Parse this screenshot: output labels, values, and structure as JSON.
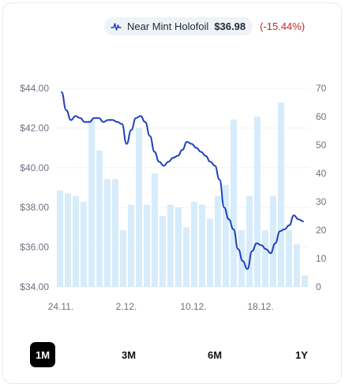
{
  "legend": {
    "series_label": "Near Mint Holofoil",
    "price": "$36.98",
    "change": "(-15.44%)",
    "icon": "line-chart-icon",
    "change_color": "#c62828"
  },
  "range_buttons": [
    {
      "label": "1M",
      "active": true
    },
    {
      "label": "3M",
      "active": false
    },
    {
      "label": "6M",
      "active": false
    },
    {
      "label": "1Y",
      "active": false
    }
  ],
  "chart_data": {
    "type": "line",
    "title": "",
    "colors": {
      "line": "#1f3fbf",
      "bars": "#d7ecfb"
    },
    "x_ticks": [
      "24.11.",
      "2.12.",
      "10.12.",
      "18.12."
    ],
    "y_left": {
      "ticks": [
        "$44.00",
        "$42.00",
        "$40.00",
        "$38.00",
        "$36.00",
        "$34.00"
      ],
      "ylim": [
        34,
        44
      ]
    },
    "y_right": {
      "ticks": [
        "70",
        "60",
        "50",
        "40",
        "30",
        "20",
        "10",
        "0"
      ],
      "ylim": [
        0,
        70
      ]
    },
    "series": [
      {
        "type": "line",
        "axis": "left",
        "values": [
          43.8,
          42.9,
          42.4,
          42.6,
          42.5,
          42.3,
          42.3,
          42.5,
          42.5,
          42.3,
          42.4,
          42.4,
          42.3,
          42.2,
          41.2,
          41.9,
          42.5,
          42.6,
          42.3,
          41.6,
          40.8,
          40.3,
          40.1,
          40.3,
          40.5,
          40.6,
          40.9,
          41.3,
          41.2,
          41.0,
          40.8,
          40.6,
          40.3,
          40.1,
          39.4,
          38.0,
          37.4,
          36.9,
          35.9,
          35.3,
          34.9,
          35.8,
          36.2,
          36.1,
          35.9,
          35.7,
          36.2,
          36.8,
          36.9,
          37.1,
          37.6,
          37.4,
          37.3
        ]
      },
      {
        "type": "bar",
        "axis": "right",
        "values": [
          34,
          33,
          32,
          30,
          59,
          48,
          38,
          38,
          20,
          29,
          56,
          29,
          40,
          25,
          29,
          28,
          21,
          30,
          29,
          24,
          32,
          36,
          59,
          20,
          32,
          60,
          20,
          32,
          65,
          20,
          15,
          4
        ]
      }
    ]
  }
}
